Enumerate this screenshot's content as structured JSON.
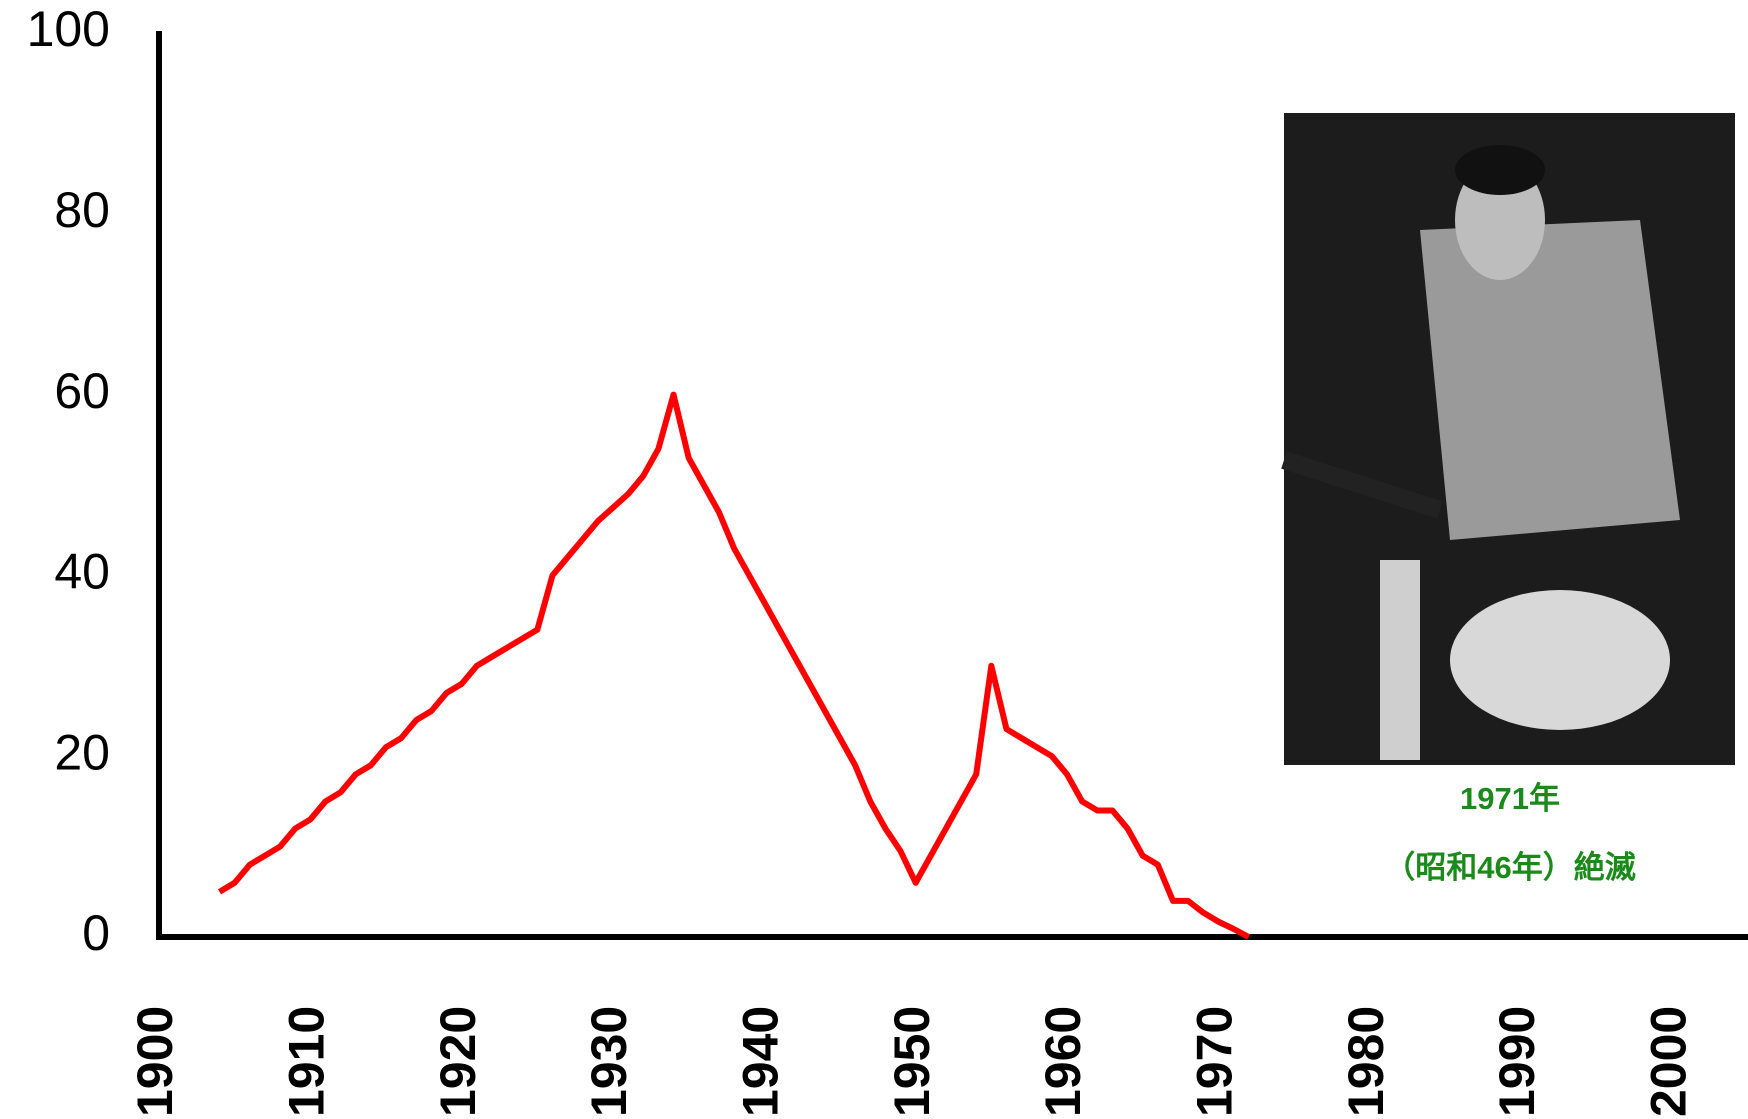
{
  "chart_data": {
    "type": "line",
    "x": [
      1904,
      1905,
      1906,
      1907,
      1908,
      1909,
      1910,
      1911,
      1912,
      1913,
      1914,
      1915,
      1916,
      1917,
      1918,
      1919,
      1920,
      1921,
      1922,
      1923,
      1924,
      1925,
      1926,
      1927,
      1928,
      1929,
      1930,
      1931,
      1932,
      1933,
      1934,
      1935,
      1936,
      1937,
      1938,
      1939,
      1940,
      1941,
      1942,
      1943,
      1944,
      1945,
      1946,
      1947,
      1948,
      1949,
      1950,
      1951,
      1952,
      1953,
      1954,
      1955,
      1956,
      1957,
      1958,
      1959,
      1960,
      1961,
      1962,
      1963,
      1964,
      1965,
      1966,
      1967,
      1968,
      1969,
      1970,
      1971,
      1972
    ],
    "series": [
      {
        "color": "#ff0000",
        "values": [
          5,
          6,
          8,
          9,
          10,
          12,
          13,
          15,
          16,
          18,
          19,
          21,
          22,
          24,
          25,
          27,
          28,
          30,
          31,
          32,
          33,
          34,
          40,
          42,
          44,
          46,
          47.5,
          49,
          51,
          54,
          60,
          53,
          50,
          47,
          43,
          40,
          37,
          34,
          31,
          28,
          25,
          22,
          19,
          15,
          12,
          9.5,
          6,
          9,
          12,
          15,
          18,
          30,
          23,
          22,
          21,
          20,
          18,
          15,
          14,
          14,
          12,
          9,
          8,
          4,
          4,
          2.7,
          1.7,
          0.9,
          0
        ]
      }
    ],
    "xlim": [
      1900,
      2005
    ],
    "xticks": [
      1900,
      1910,
      1920,
      1930,
      1940,
      1950,
      1960,
      1970,
      1980,
      1990,
      2000
    ],
    "ylim": [
      0,
      100
    ],
    "yticks": [
      0,
      20,
      40,
      60,
      80,
      100
    ],
    "annotations": [
      "1971年",
      "（昭和46年）絶滅"
    ]
  }
}
